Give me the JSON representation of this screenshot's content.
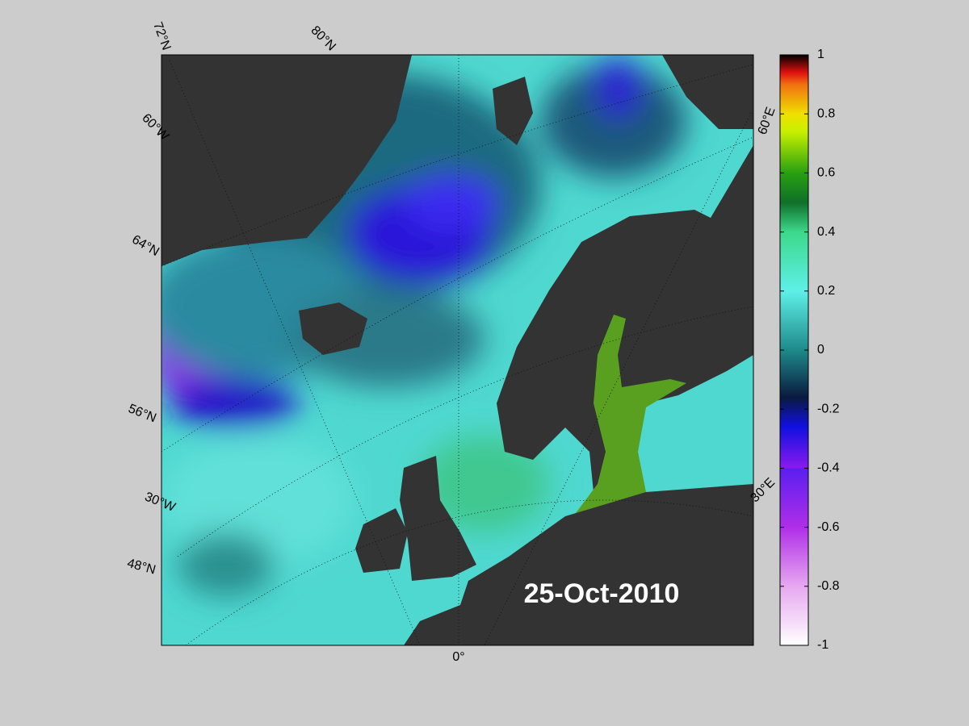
{
  "map": {
    "date_label": "25-Oct-2010",
    "graticule_labels": [
      "72°N",
      "80°N",
      "60°W",
      "64°N",
      "56°N",
      "30°W",
      "48°N",
      "0°",
      "60°E",
      "30°E"
    ]
  },
  "colorbar": {
    "lim": [
      -1,
      1
    ],
    "ticks": [
      -1,
      -0.8,
      -0.6,
      -0.4,
      -0.2,
      0,
      0.2,
      0.4,
      0.6,
      0.8,
      1
    ]
  }
}
